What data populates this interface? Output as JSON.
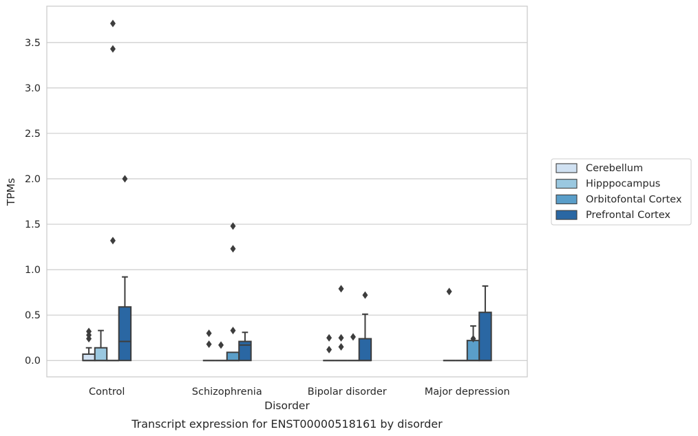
{
  "chart_data": {
    "type": "box",
    "title": "",
    "caption": "Transcript expression for ENST00000518161 by disorder",
    "xlabel": "Disorder",
    "ylabel": "TPMs",
    "ylim": [
      -0.18,
      3.9
    ],
    "yticks": [
      0.0,
      0.5,
      1.0,
      1.5,
      2.0,
      2.5,
      3.0,
      3.5
    ],
    "ytick_labels": [
      "0.0",
      "0.5",
      "1.0",
      "1.5",
      "2.0",
      "2.5",
      "3.0",
      "3.5"
    ],
    "grid": "horizontal",
    "legend_position": "right",
    "categories": [
      "Control",
      "Schizophrenia",
      "Bipolar disorder",
      "Major depression"
    ],
    "series": [
      {
        "name": "Cerebellum",
        "color": "#d0e1f2",
        "boxes": [
          {
            "q1": 0.0,
            "median": 0.0,
            "q3": 0.07,
            "whisker_low": 0.0,
            "whisker_high": 0.14,
            "outliers": [
              0.24,
              0.28,
              0.32
            ]
          },
          {
            "q1": 0.0,
            "median": 0.0,
            "q3": 0.0,
            "whisker_low": 0.0,
            "whisker_high": 0.0,
            "outliers": [
              0.18,
              0.3
            ]
          },
          {
            "q1": 0.0,
            "median": 0.0,
            "q3": 0.0,
            "whisker_low": 0.0,
            "whisker_high": 0.0,
            "outliers": [
              0.12,
              0.25
            ]
          },
          {
            "q1": 0.0,
            "median": 0.0,
            "q3": 0.0,
            "whisker_low": 0.0,
            "whisker_high": 0.0,
            "outliers": [
              0.76
            ]
          }
        ]
      },
      {
        "name": "Hipppocampus",
        "color": "#9ac8e0",
        "boxes": [
          {
            "q1": 0.0,
            "median": 0.0,
            "q3": 0.14,
            "whisker_low": 0.0,
            "whisker_high": 0.33,
            "outliers": []
          },
          {
            "q1": 0.0,
            "median": 0.0,
            "q3": 0.0,
            "whisker_low": 0.0,
            "whisker_high": 0.0,
            "outliers": [
              0.17
            ]
          },
          {
            "q1": 0.0,
            "median": 0.0,
            "q3": 0.0,
            "whisker_low": 0.0,
            "whisker_high": 0.0,
            "outliers": [
              0.15,
              0.25,
              0.79
            ]
          },
          {
            "q1": 0.0,
            "median": 0.0,
            "q3": 0.0,
            "whisker_low": 0.0,
            "whisker_high": 0.0,
            "outliers": []
          }
        ]
      },
      {
        "name": "Orbitofontal Cortex",
        "color": "#5a9ec9",
        "boxes": [
          {
            "q1": 0.0,
            "median": 0.0,
            "q3": 0.0,
            "whisker_low": 0.0,
            "whisker_high": 0.0,
            "outliers": [
              1.32,
              3.43,
              3.71
            ]
          },
          {
            "q1": 0.0,
            "median": 0.0,
            "q3": 0.09,
            "whisker_low": 0.0,
            "whisker_high": 0.09,
            "outliers": [
              0.33,
              1.23,
              1.48
            ]
          },
          {
            "q1": 0.0,
            "median": 0.0,
            "q3": 0.0,
            "whisker_low": 0.0,
            "whisker_high": 0.0,
            "outliers": [
              0.26
            ]
          },
          {
            "q1": 0.0,
            "median": 0.0,
            "q3": 0.22,
            "whisker_low": 0.0,
            "whisker_high": 0.38,
            "outliers": [
              0.24
            ]
          }
        ]
      },
      {
        "name": "Prefrontal Cortex",
        "color": "#2a67a3",
        "boxes": [
          {
            "q1": 0.0,
            "median": 0.21,
            "q3": 0.59,
            "whisker_low": 0.0,
            "whisker_high": 0.92,
            "outliers": [
              2.0
            ]
          },
          {
            "q1": 0.0,
            "median": 0.17,
            "q3": 0.21,
            "whisker_low": 0.0,
            "whisker_high": 0.31,
            "outliers": []
          },
          {
            "q1": 0.0,
            "median": 0.0,
            "q3": 0.24,
            "whisker_low": 0.0,
            "whisker_high": 0.51,
            "outliers": [
              0.72
            ]
          },
          {
            "q1": 0.0,
            "median": 0.0,
            "q3": 0.53,
            "whisker_low": 0.0,
            "whisker_high": 0.82,
            "outliers": []
          }
        ]
      }
    ]
  }
}
